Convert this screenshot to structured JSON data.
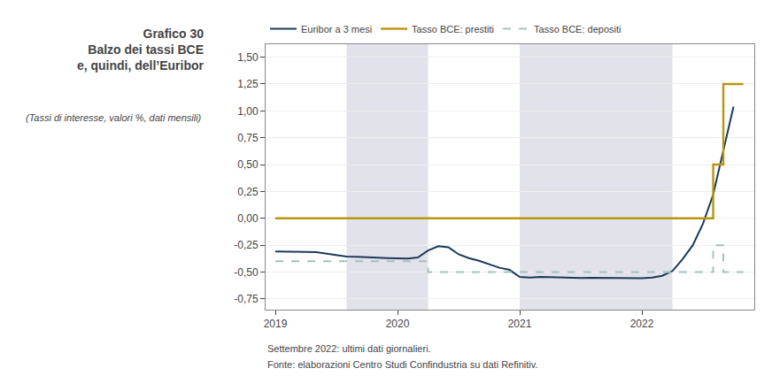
{
  "chart_data": {
    "type": "line",
    "title": "Grafico 30\nBalzo dei tassi BCE\ne, quindi, dell’Euribor",
    "subtitle": "(Tassi di interesse, valori %, dati mensili)",
    "annotations": [
      "Settembre 2022: ultimi dati giornalieri.",
      "Fonte: elaborazioni Centro Studi Confindustria su dati Refinitiv."
    ],
    "series": [
      {
        "name": "Euribor a 3 mesi",
        "type": "line",
        "line_style": "solid",
        "color": "#1a3a5c",
        "x": [
          2019.0,
          2019.0833,
          2019.1667,
          2019.25,
          2019.3333,
          2019.4167,
          2019.5,
          2019.5833,
          2019.6667,
          2019.75,
          2019.8333,
          2019.9167,
          2020.0,
          2020.0833,
          2020.1667,
          2020.25,
          2020.3333,
          2020.4167,
          2020.5,
          2020.5833,
          2020.6667,
          2020.75,
          2020.8333,
          2020.9167,
          2021.0,
          2021.0833,
          2021.1667,
          2021.25,
          2021.3333,
          2021.4167,
          2021.5,
          2021.5833,
          2021.6667,
          2021.75,
          2021.8333,
          2021.9167,
          2022.0,
          2022.0833,
          2022.1667,
          2022.25,
          2022.3333,
          2022.4167,
          2022.5,
          2022.5833,
          2022.6667,
          2022.75
        ],
        "values": [
          -0.309,
          -0.308,
          -0.31,
          -0.312,
          -0.315,
          -0.33,
          -0.34,
          -0.355,
          -0.358,
          -0.36,
          -0.365,
          -0.37,
          -0.373,
          -0.375,
          -0.365,
          -0.3,
          -0.26,
          -0.27,
          -0.335,
          -0.37,
          -0.395,
          -0.43,
          -0.46,
          -0.48,
          -0.546,
          -0.551,
          -0.545,
          -0.548,
          -0.551,
          -0.553,
          -0.555,
          -0.553,
          -0.555,
          -0.554,
          -0.556,
          -0.56,
          -0.558,
          -0.551,
          -0.535,
          -0.49,
          -0.38,
          -0.25,
          -0.05,
          0.22,
          0.62,
          1.04
        ]
      },
      {
        "name": "Tasso BCE: prestiti",
        "type": "step",
        "line_style": "solid",
        "color": "#b8960c",
        "x": [
          2019.0,
          2022.4167,
          2022.5,
          2022.5833,
          2022.6667,
          2022.75,
          2022.83
        ],
        "values": [
          0.0,
          0.0,
          0.0,
          0.5,
          1.25,
          1.25,
          1.25
        ]
      },
      {
        "name": "Tasso BCE: depositi",
        "type": "step",
        "line_style": "dashed",
        "color": "#a8bfbf",
        "x": [
          2019.0,
          2020.25,
          2020.2501,
          2022.4167,
          2022.5,
          2022.5833,
          2022.6667,
          2022.75,
          2022.83
        ],
        "values": [
          -0.4,
          -0.4,
          -0.5,
          -0.5,
          -0.5,
          -0.25,
          -0.5,
          -0.5,
          -0.5
        ]
      }
    ],
    "shaded_regions": [
      [
        2019.5833,
        2020.25
      ],
      [
        2021.0,
        2022.25
      ]
    ],
    "shaded_color": "#e2e2ea",
    "xlim": [
      2018.92,
      2022.92
    ],
    "xticks": [
      2019,
      2020,
      2021,
      2022
    ],
    "ylim": [
      -0.85,
      1.62
    ],
    "yticks": [
      {
        "value": -0.75,
        "label": "-0,75"
      },
      {
        "value": -0.5,
        "label": "-0,50"
      },
      {
        "value": -0.25,
        "label": "-0,25"
      },
      {
        "value": 0.0,
        "label": "0,00"
      },
      {
        "value": 0.25,
        "label": "0,25"
      },
      {
        "value": 0.5,
        "label": "0,50"
      },
      {
        "value": 0.75,
        "label": "0,75"
      },
      {
        "value": 1.0,
        "label": "1,00"
      },
      {
        "value": 1.25,
        "label": "1,25"
      },
      {
        "value": 1.5,
        "label": "1,50"
      }
    ],
    "grid": true,
    "legend": "upper left"
  }
}
